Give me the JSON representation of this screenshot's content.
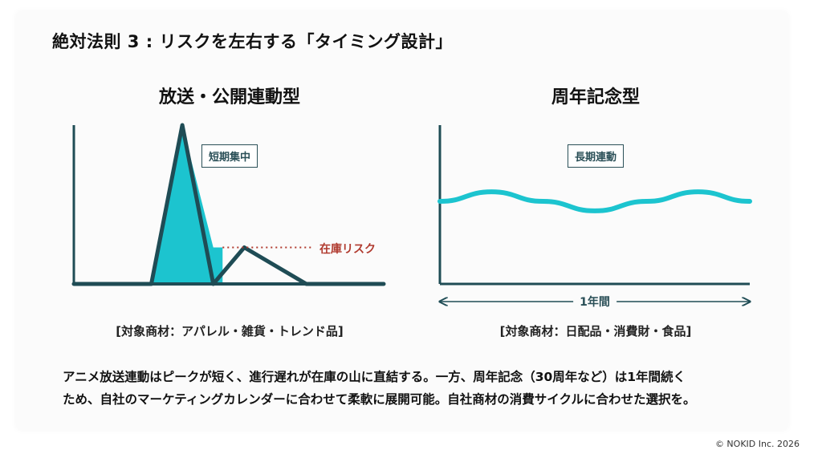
{
  "slide": {
    "title": "絶対法則 3 : リスクを左右する「タイミング設計」",
    "body_line1": "アニメ放送連動はピークが短く、進行遅れが在庫の山に直結する。一方、周年記念（30周年など）は1年間続く",
    "body_line2": "ため、自社のマーケティングカレンダーに合わせて柔軟に展開可能。自社商材の消費サイクルに合わせた選択を。",
    "copyright": "© NOKID Inc. 2026"
  },
  "colors": {
    "line_dark": "#1f4c55",
    "accent_cyan": "#1cc4cf",
    "risk_red": "#b03a2e",
    "axis": "#1f4c55"
  },
  "chart_data": [
    {
      "type": "line",
      "title": "放送・公開連動型",
      "annotation": "短期集中",
      "risk_label": "在庫リスク",
      "target_label": "[対象商材：アパレル・雑貨・トレンド品]",
      "x": [
        0,
        5,
        7,
        9,
        11,
        15,
        20
      ],
      "y": [
        0,
        0,
        100,
        0,
        23,
        0,
        0
      ],
      "series": [
        {
          "values": [
            0,
            0,
            100,
            0,
            23,
            0,
            0
          ]
        }
      ],
      "risk_threshold": 23,
      "ylim": [
        0,
        100
      ],
      "xlabel": "",
      "ylabel": ""
    },
    {
      "type": "line",
      "title": "周年記念型",
      "annotation": "長期連動",
      "span_label": "1年間",
      "target_label": "[対象商材：日配品・消費財・食品]",
      "x": [
        0,
        1,
        2,
        3,
        4,
        5,
        6
      ],
      "y": [
        52,
        58,
        52,
        46,
        52,
        58,
        52
      ],
      "ylim": [
        0,
        100
      ],
      "xlabel": "",
      "ylabel": ""
    }
  ]
}
